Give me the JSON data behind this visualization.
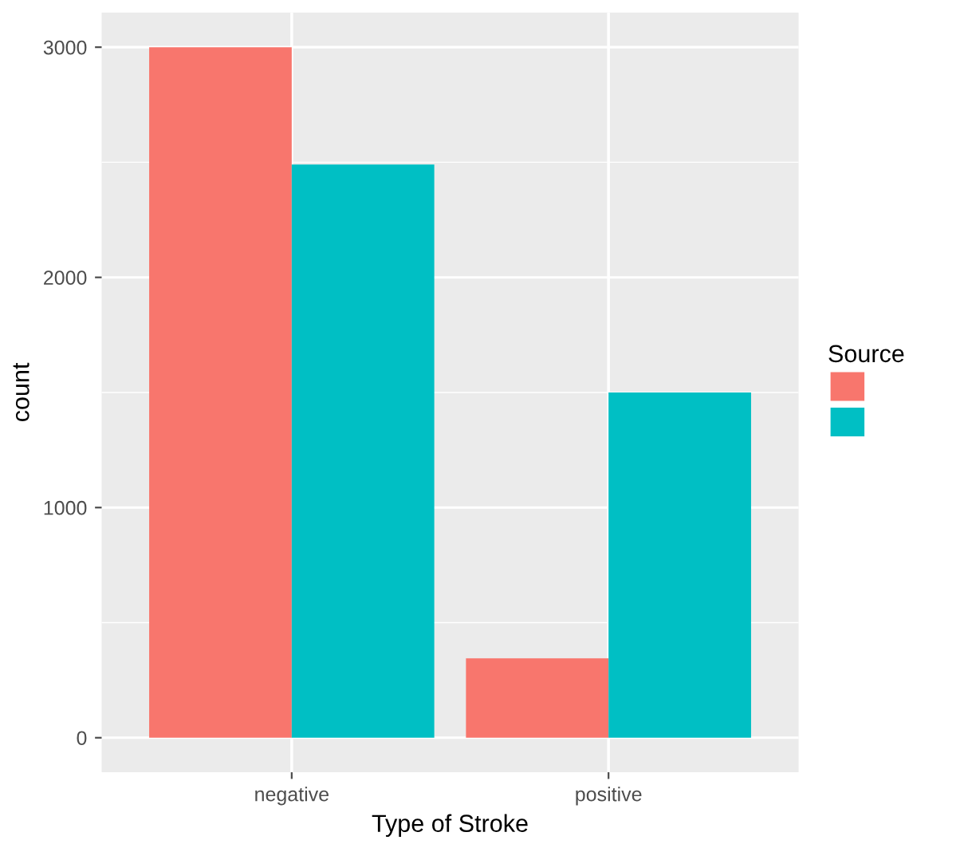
{
  "chart_data": {
    "type": "bar",
    "xlabel": "Type of Stroke",
    "ylabel": "count",
    "legend_title": "Source",
    "categories": [
      "negative",
      "positive"
    ],
    "series": [
      {
        "color": "#f8766d",
        "values": [
          3000,
          345
        ]
      },
      {
        "color": "#00bfc4",
        "values": [
          2490,
          1500
        ]
      }
    ],
    "ylim": [
      -150,
      3150
    ],
    "yticks": [
      0,
      1000,
      2000,
      3000
    ],
    "grid": true
  }
}
